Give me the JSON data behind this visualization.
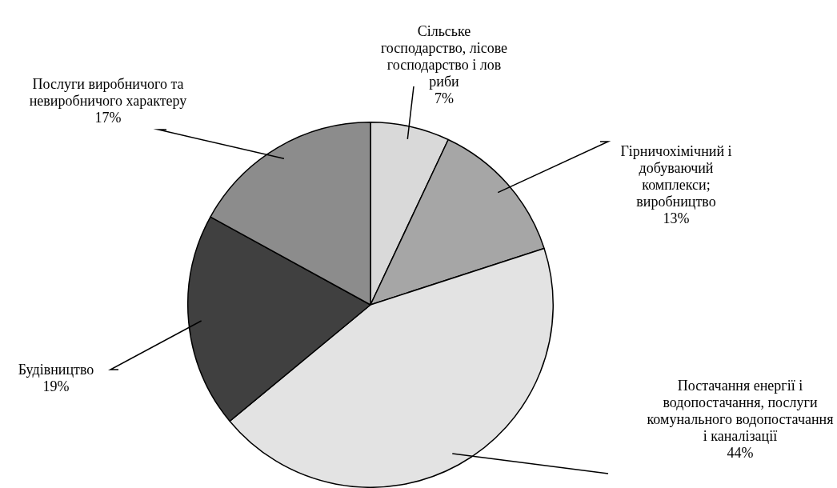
{
  "chart_data": {
    "type": "pie",
    "categories": [
      "Сільське господарство, лісове господарство і лов риби",
      "Гірничохімічний і добуваючий комплекси; виробництво",
      "Постачання енергії і водопостачання, послуги комунального водопостачання і каналізації",
      "Будівництво",
      "Послуги виробничого та невиробничого характеру"
    ],
    "values": [
      7,
      13,
      44,
      19,
      17
    ],
    "value_labels": [
      "7%",
      "13%",
      "44%",
      "19%",
      "17%"
    ],
    "colors": [
      "#d9d9d9",
      "#a6a6a6",
      "#e3e3e3",
      "#404040",
      "#8c8c8c"
    ],
    "legend": false
  }
}
